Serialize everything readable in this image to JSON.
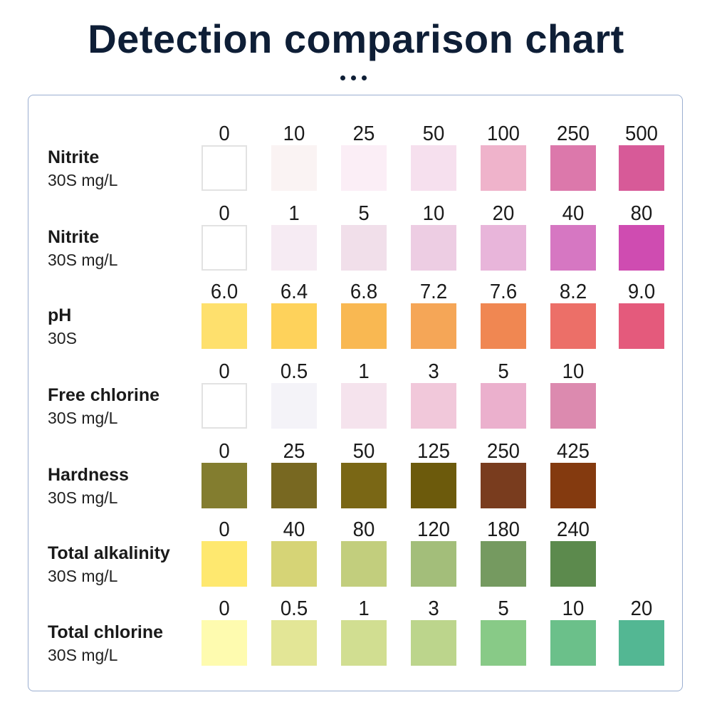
{
  "title": "Detection comparison chart",
  "chart_data": {
    "type": "table",
    "title": "Detection comparison chart",
    "rows": [
      {
        "name": "Nitrite",
        "unit": "30S mg/L",
        "values": [
          "0",
          "10",
          "25",
          "50",
          "100",
          "250",
          "500"
        ],
        "colors": [
          "#ffffff",
          "#faf3f3",
          "#fbeef6",
          "#f6e0ee",
          "#efb3cb",
          "#dc78ab",
          "#d75a98"
        ]
      },
      {
        "name": "Nitrite",
        "unit": "30S mg/L",
        "values": [
          "0",
          "1",
          "5",
          "10",
          "20",
          "40",
          "80"
        ],
        "colors": [
          "#ffffff",
          "#f6ebf3",
          "#f1dfea",
          "#edcde3",
          "#e8b5da",
          "#d677c2",
          "#cf4cb1"
        ]
      },
      {
        "name": "pH",
        "unit": "30S",
        "values": [
          "6.0",
          "6.4",
          "6.8",
          "7.2",
          "7.6",
          "8.2",
          "9.0"
        ],
        "colors": [
          "#fee06d",
          "#fed25b",
          "#f9b852",
          "#f5a657",
          "#f08752",
          "#ec6f68",
          "#e45a7c"
        ]
      },
      {
        "name": "Free chlorine",
        "unit": "30S mg/L",
        "values": [
          "0",
          "0.5",
          "1",
          "3",
          "5",
          "10"
        ],
        "colors": [
          "#ffffff",
          "#f4f3f8",
          "#f5e3ed",
          "#f1c8da",
          "#ebb0cd",
          "#dc8aaf"
        ]
      },
      {
        "name": "Hardness",
        "unit": "30S mg/L",
        "values": [
          "0",
          "25",
          "50",
          "125",
          "250",
          "425"
        ],
        "colors": [
          "#837d2f",
          "#786821",
          "#7a6715",
          "#6c5a0c",
          "#793c1e",
          "#843a0f"
        ]
      },
      {
        "name": "Total alkalinity",
        "unit": "30S mg/L",
        "values": [
          "0",
          "40",
          "80",
          "120",
          "180",
          "240"
        ],
        "colors": [
          "#fee86f",
          "#d6d476",
          "#c2ce7d",
          "#a3be7a",
          "#759a60",
          "#5c8a4d"
        ]
      },
      {
        "name": "Total chlorine",
        "unit": "30S mg/L",
        "values": [
          "0",
          "0.5",
          "1",
          "3",
          "5",
          "10",
          "20"
        ],
        "colors": [
          "#fefbaf",
          "#e3e696",
          "#d1de91",
          "#bcd58c",
          "#88ca87",
          "#6bc08a",
          "#53b793"
        ]
      }
    ]
  }
}
